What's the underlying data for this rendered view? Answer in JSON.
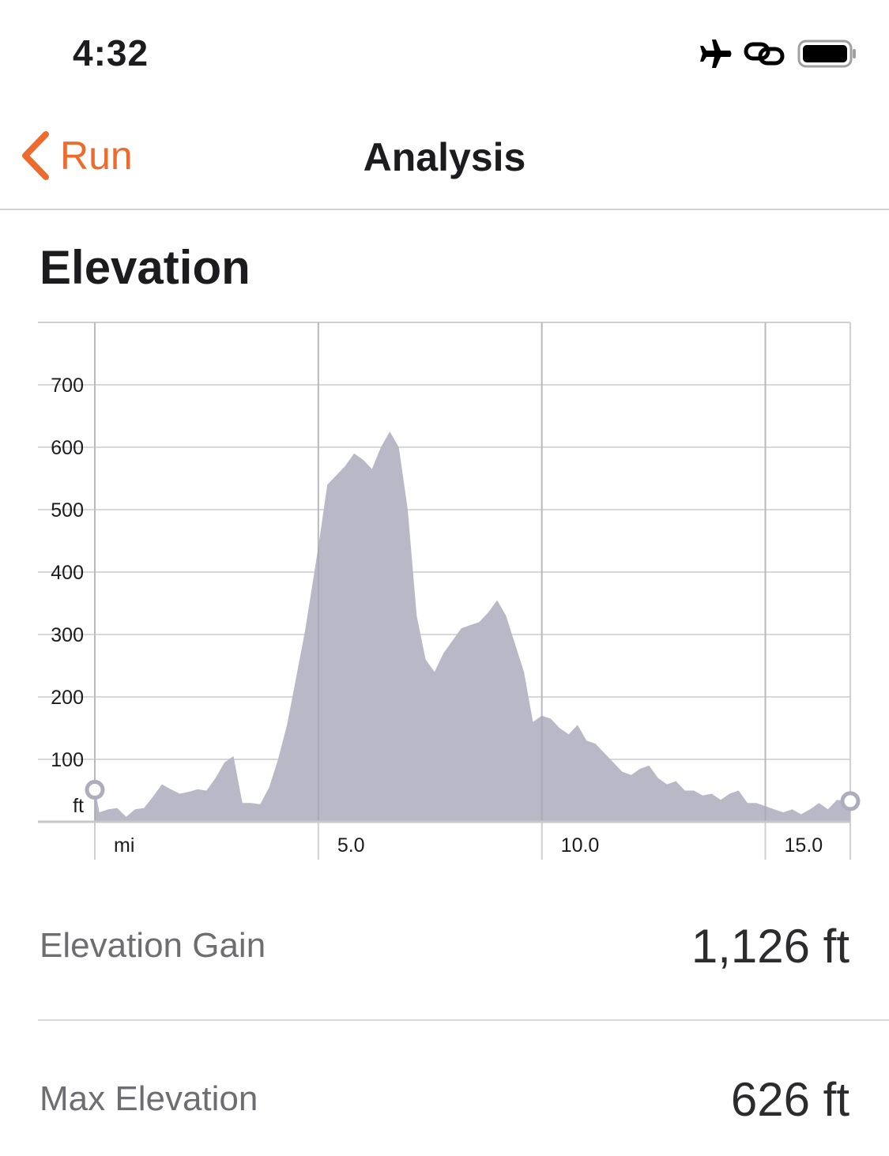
{
  "status_bar": {
    "time": "4:32"
  },
  "nav": {
    "back_label": "Run",
    "title": "Analysis",
    "accent_color": "#ec6b2d"
  },
  "section": {
    "title": "Elevation"
  },
  "chart_data": {
    "type": "area",
    "ylabel": "ft",
    "xlabel": "mi",
    "x_tick_labels": [
      "mi",
      "5.0",
      "10.0",
      "15.0"
    ],
    "x_ticks": [
      0,
      5,
      10,
      15
    ],
    "y_ticks": [
      100,
      200,
      300,
      400,
      500,
      600,
      700
    ],
    "xlim": [
      0,
      16.9
    ],
    "ylim": [
      0,
      800
    ],
    "fill_color": "#b9b8c6",
    "grid": true,
    "x": [
      0,
      0.1,
      0.3,
      0.5,
      0.7,
      0.9,
      1.1,
      1.3,
      1.5,
      1.7,
      1.9,
      2.1,
      2.3,
      2.5,
      2.7,
      2.9,
      3.1,
      3.3,
      3.5,
      3.7,
      3.9,
      4.1,
      4.3,
      4.5,
      4.7,
      4.9,
      5.0,
      5.2,
      5.4,
      5.6,
      5.8,
      6.0,
      6.2,
      6.4,
      6.6,
      6.8,
      7.0,
      7.2,
      7.4,
      7.6,
      7.8,
      8.0,
      8.2,
      8.4,
      8.6,
      8.8,
      9.0,
      9.2,
      9.4,
      9.6,
      9.8,
      10.0,
      10.2,
      10.4,
      10.6,
      10.8,
      11.0,
      11.2,
      11.4,
      11.6,
      11.8,
      12.0,
      12.2,
      12.4,
      12.6,
      12.8,
      13.0,
      13.2,
      13.4,
      13.6,
      13.8,
      14.0,
      14.2,
      14.4,
      14.6,
      14.8,
      15.0,
      15.2,
      15.4,
      15.6,
      15.8,
      16.0,
      16.2,
      16.4,
      16.6,
      16.9
    ],
    "y": [
      55,
      15,
      20,
      22,
      8,
      20,
      22,
      40,
      60,
      52,
      45,
      48,
      52,
      50,
      70,
      95,
      105,
      30,
      30,
      28,
      55,
      100,
      155,
      230,
      305,
      395,
      440,
      540,
      555,
      570,
      590,
      580,
      565,
      600,
      625,
      600,
      500,
      330,
      260,
      240,
      270,
      290,
      310,
      315,
      320,
      335,
      355,
      330,
      285,
      240,
      160,
      170,
      165,
      150,
      140,
      155,
      130,
      125,
      110,
      95,
      80,
      75,
      85,
      90,
      70,
      60,
      65,
      50,
      50,
      42,
      45,
      35,
      45,
      50,
      30,
      30,
      25,
      20,
      15,
      20,
      12,
      20,
      30,
      20,
      35,
      33
    ]
  },
  "stats": [
    {
      "label": "Elevation Gain",
      "value": "1,126 ft"
    },
    {
      "label": "Max Elevation",
      "value": "626 ft"
    }
  ]
}
